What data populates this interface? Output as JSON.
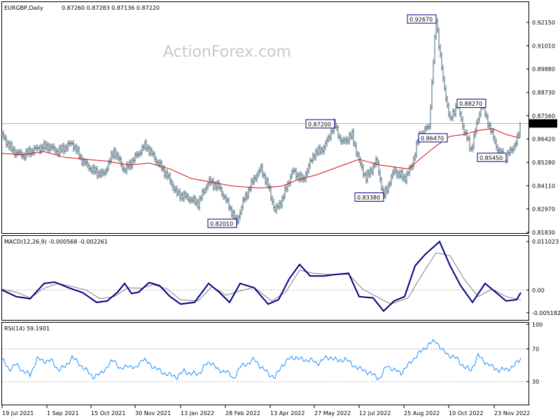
{
  "colors": {
    "background": "#ffffff",
    "price_bars": "#4a6a78",
    "moving_average": "#d01010",
    "macd_line": "#000080",
    "macd_signal": "#808080",
    "rsi_line": "#1e90ff",
    "annotation_box": "#000080",
    "current_price_bg": "#000000",
    "current_price_text": "#ffffff",
    "grid_dotted": "#a0a0a0"
  },
  "watermark": "ActionForex.com",
  "chart_data": [
    {
      "type": "candlestick",
      "title": "EURGBP,Daily",
      "ohlc_label": "0.87260 0.87283 0.87136 0.87220",
      "current_price": "0.87220",
      "ylim": [
        0.815,
        0.9355
      ],
      "y_ticks": [
        "0.92150",
        "0.91010",
        "0.89880",
        "0.88730",
        "0.87560",
        "0.86420",
        "0.85280",
        "0.84110",
        "0.82970",
        "0.81830"
      ],
      "x_ticks": [
        "19 Jul 2021",
        "1 Sep 2021",
        "15 Oct 2021",
        "30 Nov 2021",
        "13 Jan 2022",
        "28 Feb 2022",
        "13 Apr 2022",
        "27 May 2022",
        "12 Jul 2022",
        "25 Aug 2022",
        "10 Oct 2022",
        "23 Nov 2022"
      ],
      "close_path": [
        [
          0,
          0.866
        ],
        [
          15,
          0.858
        ],
        [
          30,
          0.8555
        ],
        [
          45,
          0.8585
        ],
        [
          65,
          0.8605
        ],
        [
          80,
          0.8575
        ],
        [
          100,
          0.862
        ],
        [
          115,
          0.8525
        ],
        [
          130,
          0.8475
        ],
        [
          145,
          0.8455
        ],
        [
          160,
          0.858
        ],
        [
          175,
          0.8475
        ],
        [
          190,
          0.8545
        ],
        [
          205,
          0.861
        ],
        [
          220,
          0.853
        ],
        [
          235,
          0.8455
        ],
        [
          250,
          0.8355
        ],
        [
          265,
          0.8335
        ],
        [
          280,
          0.8305
        ],
        [
          295,
          0.842
        ],
        [
          310,
          0.839
        ],
        [
          325,
          0.8285
        ],
        [
          335,
          0.8205
        ],
        [
          345,
          0.832
        ],
        [
          360,
          0.8435
        ],
        [
          370,
          0.8485
        ],
        [
          380,
          0.8395
        ],
        [
          390,
          0.8265
        ],
        [
          400,
          0.8325
        ],
        [
          415,
          0.8475
        ],
        [
          430,
          0.8425
        ],
        [
          445,
          0.856
        ],
        [
          460,
          0.8595
        ],
        [
          475,
          0.872
        ],
        [
          485,
          0.862
        ],
        [
          500,
          0.866
        ],
        [
          510,
          0.8525
        ],
        [
          520,
          0.8435
        ],
        [
          535,
          0.853
        ],
        [
          545,
          0.8338
        ],
        [
          560,
          0.8475
        ],
        [
          575,
          0.8435
        ],
        [
          585,
          0.8495
        ],
        [
          595,
          0.8647
        ],
        [
          610,
          0.871
        ],
        [
          620,
          0.9267
        ],
        [
          630,
          0.8945
        ],
        [
          640,
          0.8735
        ],
        [
          650,
          0.8827
        ],
        [
          660,
          0.8685
        ],
        [
          670,
          0.8585
        ],
        [
          685,
          0.8827
        ],
        [
          700,
          0.8665
        ],
        [
          710,
          0.857
        ],
        [
          720,
          0.8545
        ],
        [
          735,
          0.8625
        ],
        [
          741,
          0.8722
        ]
      ],
      "moving_average_path": [
        [
          0,
          0.8565
        ],
        [
          30,
          0.856
        ],
        [
          60,
          0.8575
        ],
        [
          90,
          0.8545
        ],
        [
          120,
          0.8535
        ],
        [
          150,
          0.8525
        ],
        [
          180,
          0.8505
        ],
        [
          210,
          0.8515
        ],
        [
          240,
          0.8485
        ],
        [
          270,
          0.8435
        ],
        [
          300,
          0.8415
        ],
        [
          330,
          0.8395
        ],
        [
          370,
          0.8385
        ],
        [
          400,
          0.8395
        ],
        [
          420,
          0.8425
        ],
        [
          450,
          0.8455
        ],
        [
          480,
          0.8495
        ],
        [
          510,
          0.8535
        ],
        [
          540,
          0.8505
        ],
        [
          580,
          0.8485
        ],
        [
          600,
          0.8545
        ],
        [
          620,
          0.8605
        ],
        [
          640,
          0.8655
        ],
        [
          660,
          0.8665
        ],
        [
          680,
          0.8685
        ],
        [
          700,
          0.8695
        ],
        [
          720,
          0.8665
        ],
        [
          740,
          0.8645
        ]
      ],
      "annotations": [
        {
          "label": "0.92670",
          "value": 0.9267,
          "x_index": 620,
          "side": "left"
        },
        {
          "label": "0.88270",
          "value": 0.8827,
          "x_index": 650,
          "side": "right"
        },
        {
          "label": "0.87200",
          "value": 0.872,
          "x_index": 475,
          "side": "left"
        },
        {
          "label": "0.86470",
          "value": 0.8647,
          "x_index": 595,
          "side": "right"
        },
        {
          "label": "0.85450",
          "value": 0.8545,
          "x_index": 720,
          "side": "left"
        },
        {
          "label": "0.83380",
          "value": 0.8338,
          "x_index": 545,
          "side": "left"
        },
        {
          "label": "0.82010",
          "value": 0.8201,
          "x_index": 335,
          "side": "left"
        }
      ]
    },
    {
      "type": "line",
      "title": "MACD(12,26,9) -0.000568 -0.002261",
      "ylim": [
        -0.0068,
        0.0123
      ],
      "y_ticks": [
        "0.011023",
        "0.00",
        "-0.005182"
      ],
      "reference_line": 0,
      "series": [
        {
          "role": "macd",
          "points": [
            [
              0,
              0.0
            ],
            [
              20,
              -0.0015
            ],
            [
              40,
              -0.002
            ],
            [
              60,
              0.0015
            ],
            [
              75,
              0.0018
            ],
            [
              95,
              0.0005
            ],
            [
              115,
              -0.0006
            ],
            [
              135,
              -0.0028
            ],
            [
              150,
              -0.0025
            ],
            [
              165,
              -0.0005
            ],
            [
              175,
              0.0015
            ],
            [
              185,
              -0.0008
            ],
            [
              195,
              -0.0005
            ],
            [
              210,
              0.0017
            ],
            [
              225,
              0.001
            ],
            [
              240,
              -0.0015
            ],
            [
              255,
              -0.0032
            ],
            [
              275,
              -0.0028
            ],
            [
              295,
              0.0015
            ],
            [
              310,
              -0.0005
            ],
            [
              325,
              -0.0028
            ],
            [
              340,
              0.0015
            ],
            [
              360,
              0.0005
            ],
            [
              380,
              -0.0032
            ],
            [
              395,
              -0.0022
            ],
            [
              410,
              0.0025
            ],
            [
              425,
              0.0058
            ],
            [
              440,
              0.0032
            ],
            [
              460,
              0.0032
            ],
            [
              475,
              0.0035
            ],
            [
              495,
              0.0038
            ],
            [
              510,
              -0.0015
            ],
            [
              530,
              -0.0018
            ],
            [
              545,
              -0.0048
            ],
            [
              560,
              -0.0025
            ],
            [
              575,
              -0.0015
            ],
            [
              590,
              0.0055
            ],
            [
              605,
              0.0082
            ],
            [
              625,
              0.011
            ],
            [
              640,
              0.0055
            ],
            [
              655,
              0.001
            ],
            [
              672,
              -0.0028
            ],
            [
              690,
              0.0015
            ],
            [
              705,
              -0.0005
            ],
            [
              720,
              -0.0025
            ],
            [
              735,
              -0.0022
            ],
            [
              741,
              -0.0006
            ]
          ]
        },
        {
          "role": "signal",
          "points": [
            [
              0,
              0.0002
            ],
            [
              20,
              -0.0005
            ],
            [
              40,
              -0.0018
            ],
            [
              60,
              0.0004
            ],
            [
              80,
              0.0015
            ],
            [
              100,
              0.0008
            ],
            [
              120,
              0.0
            ],
            [
              140,
              -0.002
            ],
            [
              160,
              -0.0015
            ],
            [
              180,
              0.0005
            ],
            [
              200,
              0.0004
            ],
            [
              215,
              0.0012
            ],
            [
              235,
              0.0003
            ],
            [
              255,
              -0.0022
            ],
            [
              280,
              -0.0025
            ],
            [
              300,
              0.0008
            ],
            [
              320,
              -0.0012
            ],
            [
              340,
              -0.0002
            ],
            [
              360,
              0.0006
            ],
            [
              385,
              -0.0025
            ],
            [
              405,
              -0.0005
            ],
            [
              425,
              0.0045
            ],
            [
              445,
              0.0038
            ],
            [
              470,
              0.0035
            ],
            [
              495,
              0.0036
            ],
            [
              515,
              0.0002
            ],
            [
              535,
              -0.0015
            ],
            [
              555,
              -0.0032
            ],
            [
              580,
              -0.0018
            ],
            [
              600,
              0.0035
            ],
            [
              620,
              0.0085
            ],
            [
              640,
              0.0078
            ],
            [
              660,
              0.0025
            ],
            [
              680,
              -0.0015
            ],
            [
              700,
              0.0002
            ],
            [
              720,
              -0.0015
            ],
            [
              741,
              -0.0023
            ]
          ]
        }
      ]
    },
    {
      "type": "line",
      "title": "RSI(14) 59.1901",
      "ylim": [
        2,
        102
      ],
      "y_ticks": [
        "100",
        "70",
        "30"
      ],
      "reference_lines": [
        70,
        30
      ],
      "series": [
        {
          "role": "rsi",
          "points": [
            [
              0,
              57
            ],
            [
              10,
              45
            ],
            [
              20,
              51
            ],
            [
              30,
              43
            ],
            [
              40,
              38
            ],
            [
              50,
              58
            ],
            [
              60,
              55
            ],
            [
              70,
              56
            ],
            [
              80,
              45
            ],
            [
              90,
              48
            ],
            [
              100,
              60
            ],
            [
              110,
              52
            ],
            [
              120,
              44
            ],
            [
              130,
              36
            ],
            [
              140,
              39
            ],
            [
              150,
              48
            ],
            [
              160,
              57
            ],
            [
              170,
              44
            ],
            [
              180,
              51
            ],
            [
              190,
              45
            ],
            [
              200,
              58
            ],
            [
              210,
              52
            ],
            [
              220,
              46
            ],
            [
              230,
              41
            ],
            [
              240,
              38
            ],
            [
              250,
              36
            ],
            [
              260,
              43
            ],
            [
              270,
              40
            ],
            [
              280,
              39
            ],
            [
              290,
              50
            ],
            [
              300,
              54
            ],
            [
              310,
              42
            ],
            [
              320,
              44
            ],
            [
              330,
              33
            ],
            [
              340,
              48
            ],
            [
              350,
              52
            ],
            [
              360,
              57
            ],
            [
              370,
              48
            ],
            [
              380,
              40
            ],
            [
              390,
              35
            ],
            [
              400,
              50
            ],
            [
              410,
              58
            ],
            [
              420,
              60
            ],
            [
              430,
              56
            ],
            [
              440,
              57
            ],
            [
              450,
              52
            ],
            [
              460,
              58
            ],
            [
              470,
              60
            ],
            [
              480,
              55
            ],
            [
              490,
              58
            ],
            [
              500,
              51
            ],
            [
              510,
              46
            ],
            [
              520,
              43
            ],
            [
              530,
              38
            ],
            [
              540,
              34
            ],
            [
              550,
              50
            ],
            [
              560,
              44
            ],
            [
              570,
              41
            ],
            [
              580,
              50
            ],
            [
              590,
              60
            ],
            [
              600,
              68
            ],
            [
              610,
              76
            ],
            [
              620,
              80
            ],
            [
              630,
              67
            ],
            [
              640,
              62
            ],
            [
              650,
              58
            ],
            [
              660,
              48
            ],
            [
              670,
              44
            ],
            [
              680,
              62
            ],
            [
              690,
              54
            ],
            [
              700,
              48
            ],
            [
              710,
              44
            ],
            [
              720,
              45
            ],
            [
              730,
              48
            ],
            [
              741,
              59
            ]
          ]
        }
      ]
    }
  ]
}
